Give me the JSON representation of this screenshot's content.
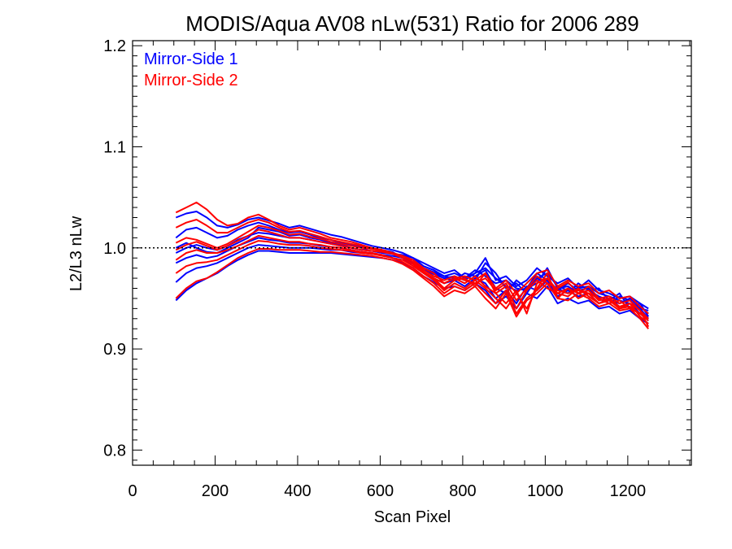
{
  "chart_data": {
    "type": "line",
    "title": "MODIS/Aqua AV08 nLw(531) Ratio for 2006 289",
    "xlabel": "Scan Pixel",
    "ylabel": "L2/L3 nLw",
    "xlim": [
      0,
      1354
    ],
    "ylim": [
      0.785,
      1.205
    ],
    "xticks": [
      0,
      200,
      400,
      600,
      800,
      1000,
      1200
    ],
    "xtick_labels": [
      "0",
      "200",
      "400",
      "600",
      "800",
      "1000",
      "1200"
    ],
    "yticks": [
      0.8,
      0.9,
      1.0,
      1.1,
      1.2
    ],
    "ytick_labels": [
      "0.8",
      "0.9",
      "1.0",
      "1.1",
      "1.2"
    ],
    "reference_line": {
      "y": 1.0,
      "style": "dotted"
    },
    "grid": false,
    "legend_position": "top-left",
    "legend": [
      {
        "label": "Mirror-Side 1",
        "color": "#0000ff"
      },
      {
        "label": "Mirror-Side 2",
        "color": "#ff0000"
      }
    ],
    "x": [
      105,
      130,
      155,
      180,
      205,
      230,
      255,
      280,
      305,
      330,
      355,
      380,
      405,
      430,
      455,
      480,
      505,
      530,
      555,
      580,
      605,
      630,
      655,
      680,
      705,
      730,
      755,
      780,
      805,
      830,
      855,
      880,
      905,
      930,
      955,
      980,
      1005,
      1030,
      1055,
      1080,
      1105,
      1130,
      1155,
      1180,
      1205,
      1230,
      1250
    ],
    "series": [
      {
        "color": "#0000ff",
        "values": [
          1.03,
          1.034,
          1.036,
          1.03,
          1.022,
          1.02,
          1.023,
          1.028,
          1.03,
          1.027,
          1.024,
          1.02,
          1.022,
          1.019,
          1.016,
          1.013,
          1.011,
          1.008,
          1.005,
          1.002,
          1.0,
          0.998,
          0.995,
          0.99,
          0.982,
          0.978,
          0.972,
          0.975,
          0.97,
          0.978,
          0.972,
          0.965,
          0.968,
          0.96,
          0.958,
          0.97,
          0.965,
          0.96,
          0.962,
          0.955,
          0.958,
          0.952,
          0.948,
          0.945,
          0.95,
          0.942,
          0.935
        ]
      },
      {
        "color": "#0000ff",
        "values": [
          1.01,
          1.018,
          1.02,
          1.015,
          1.01,
          1.012,
          1.018,
          1.022,
          1.025,
          1.022,
          1.018,
          1.015,
          1.016,
          1.013,
          1.01,
          1.008,
          1.005,
          1.003,
          1.001,
          0.999,
          0.998,
          0.996,
          0.99,
          0.985,
          0.978,
          0.974,
          0.97,
          0.972,
          0.968,
          0.975,
          0.98,
          0.97,
          0.962,
          0.958,
          0.96,
          0.975,
          0.968,
          0.958,
          0.965,
          0.958,
          0.96,
          0.95,
          0.945,
          0.952,
          0.948,
          0.94,
          0.93
        ]
      },
      {
        "color": "#0000ff",
        "values": [
          0.995,
          1.0,
          1.003,
          1.0,
          0.998,
          1.002,
          1.008,
          1.012,
          1.015,
          1.014,
          1.012,
          1.01,
          1.01,
          1.008,
          1.006,
          1.004,
          1.002,
          1.0,
          0.998,
          0.997,
          0.995,
          0.994,
          0.99,
          0.986,
          0.98,
          0.976,
          0.972,
          0.97,
          0.972,
          0.968,
          0.985,
          0.975,
          0.96,
          0.965,
          0.955,
          0.97,
          0.975,
          0.962,
          0.958,
          0.96,
          0.962,
          0.955,
          0.952,
          0.948,
          0.945,
          0.94,
          0.938
        ]
      },
      {
        "color": "#0000ff",
        "values": [
          0.985,
          0.99,
          0.993,
          0.99,
          0.992,
          0.997,
          1.002,
          1.006,
          1.01,
          1.008,
          1.007,
          1.005,
          1.005,
          1.004,
          1.002,
          1.001,
          1.0,
          0.998,
          0.996,
          0.995,
          0.993,
          0.992,
          0.99,
          0.985,
          0.978,
          0.975,
          0.97,
          0.968,
          0.975,
          0.972,
          0.978,
          0.96,
          0.955,
          0.968,
          0.96,
          0.965,
          0.98,
          0.96,
          0.955,
          0.965,
          0.958,
          0.96,
          0.948,
          0.955,
          0.94,
          0.945,
          0.932
        ]
      },
      {
        "color": "#0000ff",
        "values": [
          0.966,
          0.975,
          0.98,
          0.982,
          0.985,
          0.99,
          0.995,
          1.0,
          1.003,
          1.002,
          1.001,
          1.0,
          1.0,
          1.0,
          0.999,
          0.998,
          0.998,
          0.996,
          0.995,
          0.994,
          0.993,
          0.99,
          0.988,
          0.984,
          0.976,
          0.97,
          0.965,
          0.968,
          0.962,
          0.97,
          0.965,
          0.95,
          0.958,
          0.945,
          0.962,
          0.958,
          0.968,
          0.952,
          0.958,
          0.952,
          0.955,
          0.945,
          0.95,
          0.94,
          0.945,
          0.935,
          0.928
        ]
      },
      {
        "color": "#0000ff",
        "values": [
          0.948,
          0.958,
          0.965,
          0.97,
          0.975,
          0.982,
          0.988,
          0.993,
          0.997,
          0.997,
          0.996,
          0.995,
          0.995,
          0.995,
          0.995,
          0.995,
          0.994,
          0.993,
          0.992,
          0.991,
          0.99,
          0.988,
          0.985,
          0.98,
          0.972,
          0.966,
          0.96,
          0.962,
          0.958,
          0.965,
          0.958,
          0.945,
          0.952,
          0.94,
          0.955,
          0.95,
          0.962,
          0.945,
          0.95,
          0.945,
          0.948,
          0.94,
          0.942,
          0.935,
          0.938,
          0.93,
          0.925
        ]
      },
      {
        "color": "#0000ff",
        "values": [
          1.0,
          1.005,
          1.0,
          0.996,
          0.995,
          1.0,
          1.005,
          1.01,
          1.02,
          1.018,
          1.016,
          1.012,
          1.013,
          1.01,
          1.008,
          1.005,
          1.003,
          1.0,
          0.998,
          1.0,
          0.996,
          0.994,
          0.993,
          0.99,
          0.985,
          0.98,
          0.975,
          0.978,
          0.97,
          0.975,
          0.99,
          0.968,
          0.972,
          0.962,
          0.968,
          0.98,
          0.972,
          0.965,
          0.97,
          0.96,
          0.968,
          0.958,
          0.955,
          0.95,
          0.952,
          0.945,
          0.94
        ]
      },
      {
        "color": "#ff0000",
        "values": [
          1.035,
          1.04,
          1.045,
          1.038,
          1.028,
          1.022,
          1.024,
          1.03,
          1.033,
          1.028,
          1.022,
          1.018,
          1.02,
          1.017,
          1.014,
          1.01,
          1.008,
          1.006,
          1.003,
          1.0,
          0.998,
          0.995,
          0.99,
          0.984,
          0.976,
          0.97,
          0.965,
          0.97,
          0.965,
          0.972,
          0.962,
          0.955,
          0.962,
          0.94,
          0.958,
          0.968,
          0.96,
          0.955,
          0.96,
          0.95,
          0.955,
          0.945,
          0.95,
          0.94,
          0.945,
          0.932,
          0.925
        ]
      },
      {
        "color": "#ff0000",
        "values": [
          1.02,
          1.025,
          1.028,
          1.022,
          1.015,
          1.015,
          1.02,
          1.025,
          1.028,
          1.025,
          1.02,
          1.016,
          1.017,
          1.014,
          1.011,
          1.008,
          1.006,
          1.004,
          1.002,
          1.0,
          0.998,
          0.995,
          0.992,
          0.986,
          0.978,
          0.972,
          0.968,
          0.972,
          0.968,
          0.965,
          0.97,
          0.958,
          0.965,
          0.948,
          0.96,
          0.972,
          0.965,
          0.96,
          0.966,
          0.955,
          0.962,
          0.95,
          0.952,
          0.945,
          0.948,
          0.938,
          0.93
        ]
      },
      {
        "color": "#ff0000",
        "values": [
          0.998,
          1.003,
          1.006,
          1.002,
          0.998,
          1.002,
          1.007,
          1.012,
          1.018,
          1.016,
          1.013,
          1.01,
          1.01,
          1.008,
          1.006,
          1.004,
          1.002,
          1.0,
          0.998,
          0.997,
          0.996,
          0.994,
          0.99,
          0.984,
          0.976,
          0.97,
          0.96,
          0.968,
          0.97,
          0.962,
          0.975,
          0.955,
          0.945,
          0.958,
          0.935,
          0.965,
          0.97,
          0.958,
          0.955,
          0.958,
          0.955,
          0.95,
          0.945,
          0.948,
          0.94,
          0.935,
          0.93
        ]
      },
      {
        "color": "#ff0000",
        "values": [
          0.988,
          0.995,
          0.998,
          0.995,
          0.995,
          0.998,
          1.002,
          1.007,
          1.012,
          1.01,
          1.008,
          1.006,
          1.006,
          1.004,
          1.003,
          1.001,
          1.0,
          0.998,
          0.996,
          0.995,
          0.993,
          0.99,
          0.988,
          0.982,
          0.975,
          0.968,
          0.958,
          0.965,
          0.96,
          0.968,
          0.96,
          0.95,
          0.94,
          0.955,
          0.94,
          0.96,
          0.975,
          0.95,
          0.96,
          0.955,
          0.958,
          0.948,
          0.95,
          0.942,
          0.945,
          0.938,
          0.922
        ]
      },
      {
        "color": "#ff0000",
        "values": [
          0.975,
          0.982,
          0.985,
          0.986,
          0.988,
          0.993,
          0.998,
          1.003,
          1.007,
          1.006,
          1.004,
          1.003,
          1.003,
          1.002,
          1.0,
          0.999,
          0.998,
          0.997,
          0.995,
          0.994,
          0.992,
          0.99,
          0.986,
          0.98,
          0.972,
          0.965,
          0.955,
          0.962,
          0.958,
          0.965,
          0.955,
          0.945,
          0.958,
          0.935,
          0.95,
          0.958,
          0.97,
          0.955,
          0.952,
          0.96,
          0.952,
          0.945,
          0.948,
          0.94,
          0.942,
          0.935,
          0.928
        ]
      },
      {
        "color": "#ff0000",
        "values": [
          0.95,
          0.96,
          0.967,
          0.97,
          0.976,
          0.983,
          0.99,
          0.995,
          0.999,
          0.999,
          0.998,
          0.998,
          0.998,
          0.997,
          0.996,
          0.996,
          0.995,
          0.994,
          0.993,
          0.992,
          0.99,
          0.988,
          0.984,
          0.978,
          0.97,
          0.962,
          0.952,
          0.958,
          0.955,
          0.962,
          0.95,
          0.94,
          0.955,
          0.932,
          0.948,
          0.955,
          0.965,
          0.95,
          0.948,
          0.955,
          0.95,
          0.942,
          0.945,
          0.938,
          0.94,
          0.93,
          0.92
        ]
      },
      {
        "color": "#ff0000",
        "values": [
          1.005,
          1.01,
          1.008,
          1.004,
          1.0,
          1.004,
          1.01,
          1.016,
          1.022,
          1.02,
          1.017,
          1.013,
          1.014,
          1.011,
          1.009,
          1.006,
          1.004,
          1.002,
          1.0,
          0.999,
          0.997,
          0.995,
          0.992,
          0.988,
          0.98,
          0.975,
          0.965,
          0.97,
          0.972,
          0.968,
          0.975,
          0.96,
          0.968,
          0.955,
          0.965,
          0.975,
          0.978,
          0.962,
          0.968,
          0.962,
          0.965,
          0.955,
          0.958,
          0.95,
          0.952,
          0.942,
          0.935
        ]
      }
    ]
  }
}
